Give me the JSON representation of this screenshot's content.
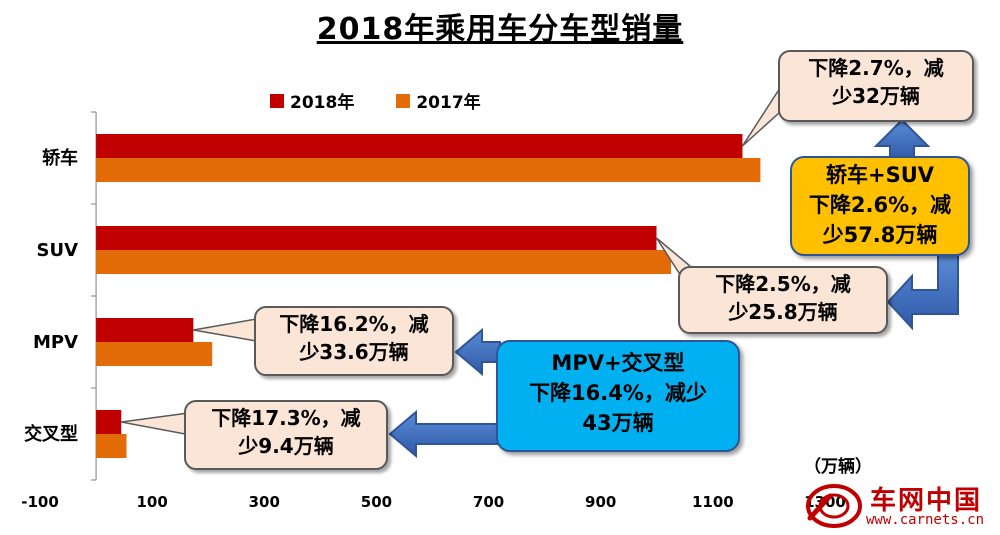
{
  "chart_data": {
    "type": "bar",
    "orientation": "horizontal",
    "title": "2018年乘用车分车型销量",
    "unit_label": "（万辆）",
    "categories": [
      "轿车",
      "SUV",
      "MPV",
      "交叉型"
    ],
    "series": [
      {
        "name": "2018年",
        "color": "#c00000",
        "values": [
          1152.8,
          999.5,
          173.5,
          44.9
        ]
      },
      {
        "name": "2017年",
        "color": "#e36c09",
        "values": [
          1184.8,
          1025.3,
          207.1,
          54.3
        ]
      }
    ],
    "xlim": [
      -100,
      1300
    ],
    "xticks": [
      -100,
      100,
      300,
      500,
      700,
      900,
      1100,
      1300
    ],
    "xtick_labels": [
      "-100",
      "100",
      "300",
      "500",
      "700",
      "900",
      "1100",
      "1300"
    ],
    "legend_position": "top",
    "grid": false
  },
  "callouts": {
    "sedan": {
      "line1": "下降2.7%，减",
      "line2": "少32万辆"
    },
    "suv": {
      "line1": "下降2.5%，减",
      "line2": "少25.8万辆"
    },
    "mpv": {
      "line1": "下降16.2%，减",
      "line2": "少33.6万辆"
    },
    "crossover": {
      "line1": "下降17.3%，减",
      "line2": "少9.4万辆"
    }
  },
  "summaries": {
    "sedan_suv": {
      "line1": "轿车+SUV",
      "line2": "下降2.6%，减",
      "line3": "少57.8万辆",
      "color": "#ffc000"
    },
    "mpv_crossover": {
      "line1": "MPV+交叉型",
      "line2": "下降16.4%，减少",
      "line3": "43万辆",
      "color": "#00b0f0"
    }
  },
  "logo": {
    "brand": "车网中国",
    "url": "www.carnets.cn"
  }
}
